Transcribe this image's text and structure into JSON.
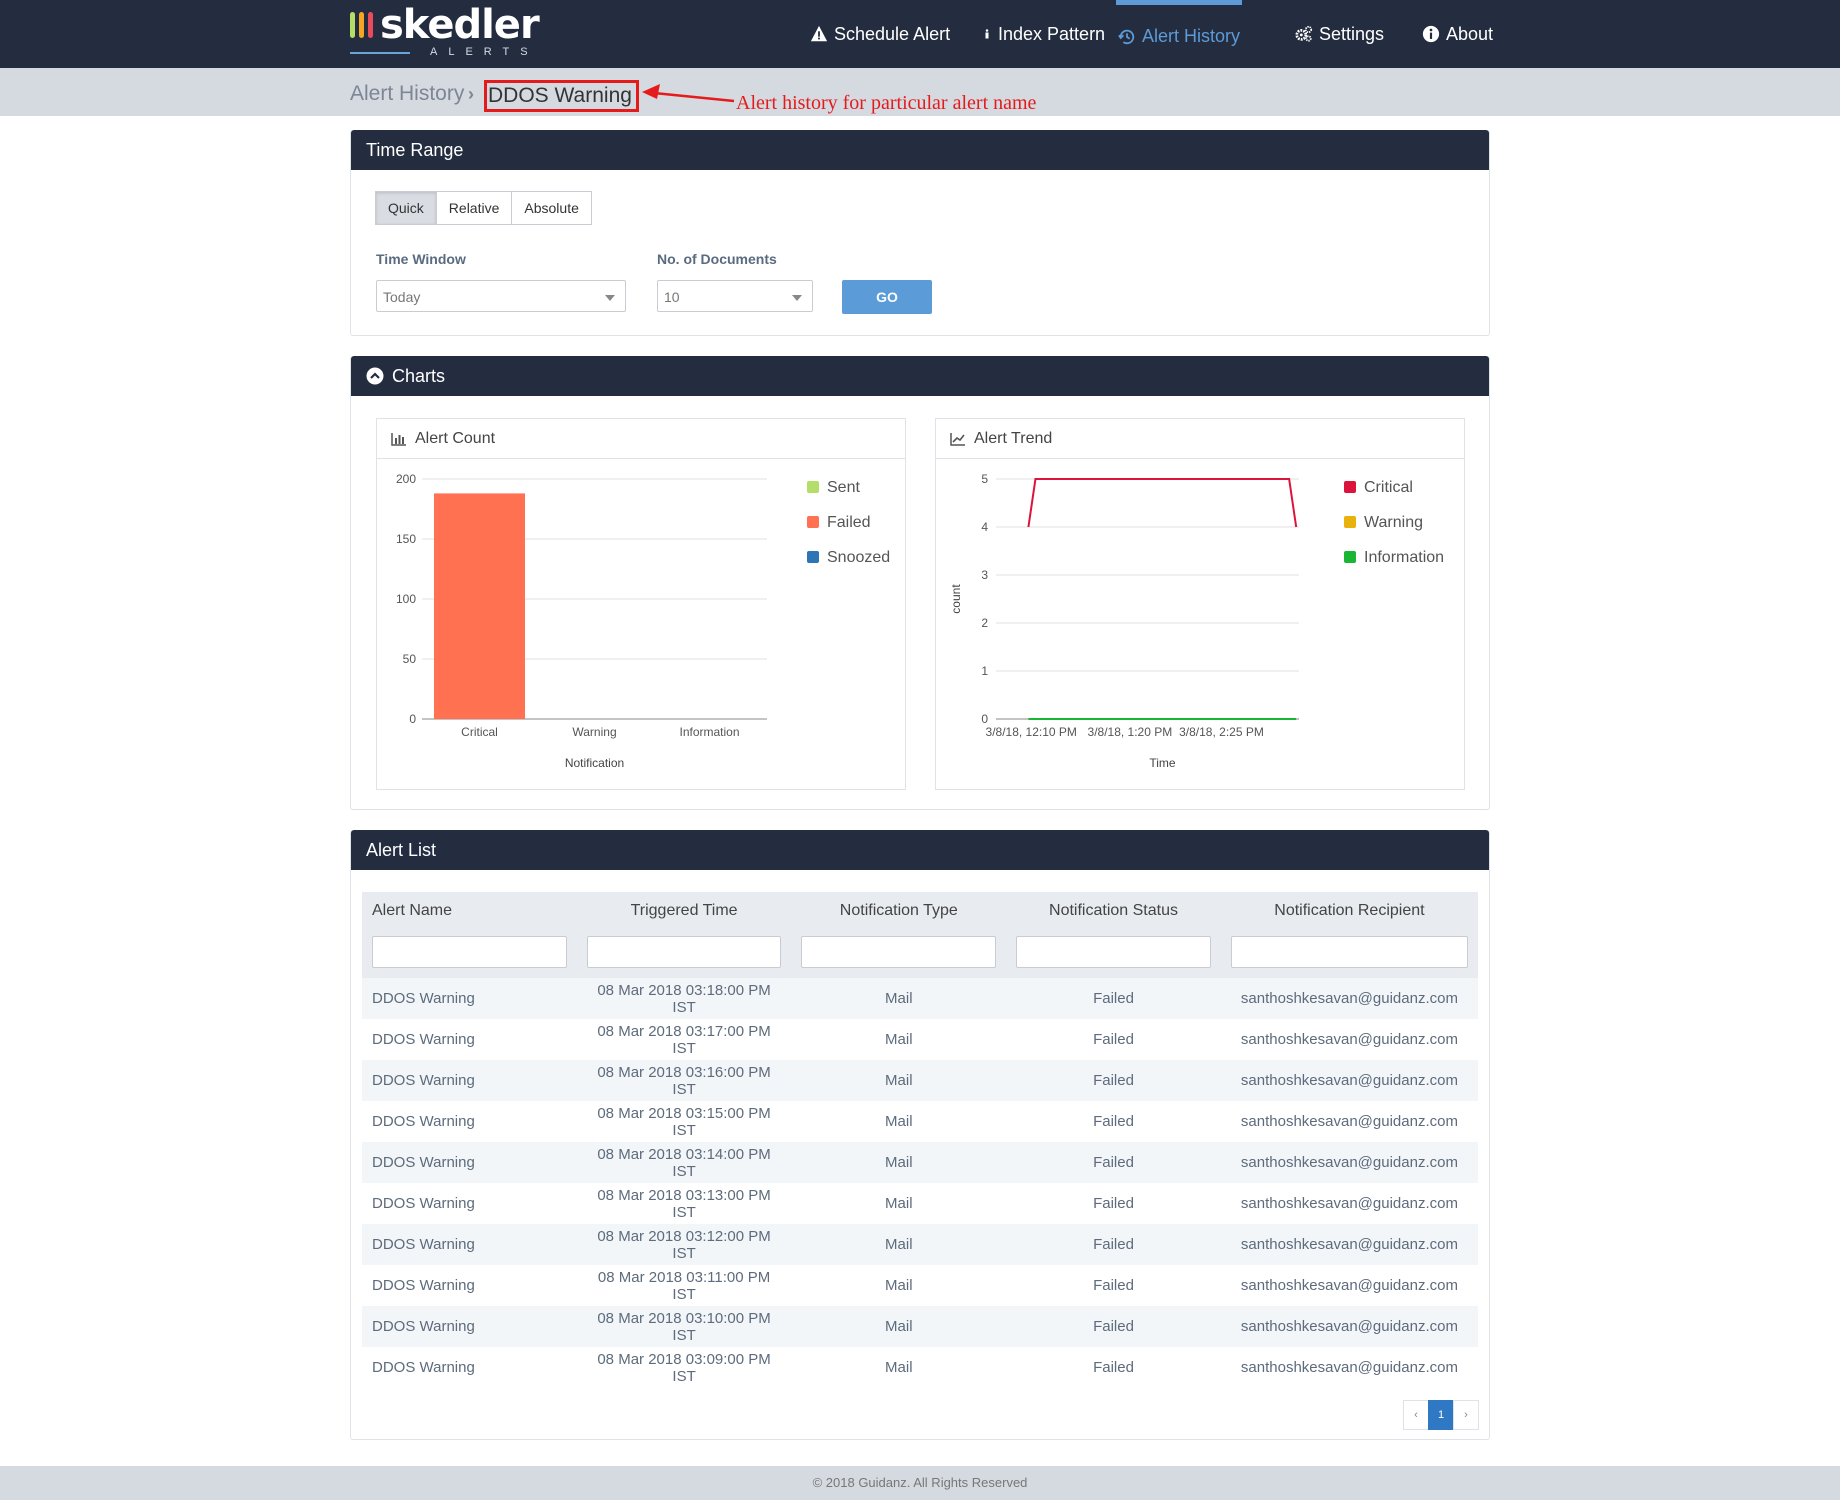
{
  "nav": {
    "items": [
      {
        "label": "Schedule Alert",
        "icon": "warning-icon"
      },
      {
        "label": "Index Pattern",
        "icon": "info-icon"
      },
      {
        "label": "Alert History",
        "icon": "history-icon",
        "active": true
      },
      {
        "label": "Settings",
        "icon": "gears-icon"
      },
      {
        "label": "About",
        "icon": "info-circle-icon"
      }
    ],
    "logo_text": "skedler",
    "logo_sub": "ALERTS"
  },
  "breadcrumb": {
    "root": "Alert History",
    "separator": "›",
    "current": "DDOS Warning"
  },
  "annotation": "Alert history for particular alert name",
  "time_range": {
    "title": "Time Range",
    "tabs": [
      "Quick",
      "Relative",
      "Absolute"
    ],
    "active_tab": "Quick",
    "time_window_label": "Time Window",
    "time_window_value": "Today",
    "docs_label": "No. of Documents",
    "docs_value": "10",
    "go_label": "GO"
  },
  "charts": {
    "title": "Charts",
    "alert_count": {
      "title": "Alert Count",
      "legend": [
        {
          "name": "Sent",
          "color": "#b3de69"
        },
        {
          "name": "Failed",
          "color": "#ff7150"
        },
        {
          "name": "Snoozed",
          "color": "#2e75b6"
        }
      ]
    },
    "alert_trend": {
      "title": "Alert Trend",
      "legend": [
        {
          "name": "Critical",
          "color": "#dc143c"
        },
        {
          "name": "Warning",
          "color": "#e8b10c"
        },
        {
          "name": "Information",
          "color": "#1bb534"
        }
      ]
    }
  },
  "chart_data": [
    {
      "type": "bar",
      "title": "Alert Count",
      "categories": [
        "Critical",
        "Warning",
        "Information"
      ],
      "series": [
        {
          "name": "Sent",
          "values": [
            0,
            0,
            0
          ]
        },
        {
          "name": "Failed",
          "values": [
            188,
            0,
            0
          ]
        },
        {
          "name": "Snoozed",
          "values": [
            0,
            0,
            0
          ]
        }
      ],
      "xlabel": "Notification",
      "ylabel": "",
      "ylim": [
        0,
        200
      ],
      "yticks": [
        0,
        50,
        100,
        150,
        200
      ]
    },
    {
      "type": "line",
      "title": "Alert Trend",
      "x_ticks": [
        "3/8/18, 12:10 PM",
        "3/8/18, 1:20 PM",
        "3/8/18, 2:25 PM"
      ],
      "x_range": [
        "3/8/18, 11:45 AM",
        "3/8/18, 3:20 PM"
      ],
      "series": [
        {
          "name": "Critical",
          "x": [
            "3/8/18, 12:08 PM",
            "3/8/18, 12:13 PM",
            "3/8/18, 3:13 PM",
            "3/8/18, 3:18 PM"
          ],
          "values": [
            4,
            5,
            5,
            4
          ]
        },
        {
          "name": "Information",
          "x": [
            "3/8/18, 12:08 PM",
            "3/8/18, 3:18 PM"
          ],
          "values": [
            0,
            0
          ]
        }
      ],
      "xlabel": "Time",
      "ylabel": "count",
      "ylim": [
        0,
        5
      ],
      "yticks": [
        0,
        1,
        2,
        3,
        4,
        5
      ]
    }
  ],
  "alert_list": {
    "title": "Alert List",
    "columns": [
      "Alert Name",
      "Triggered Time",
      "Notification Type",
      "Notification Status",
      "Notification Recipient"
    ],
    "rows": [
      [
        "DDOS Warning",
        "08 Mar 2018 03:18:00 PM IST",
        "Mail",
        "Failed",
        "santhoshkesavan@guidanz.com"
      ],
      [
        "DDOS Warning",
        "08 Mar 2018 03:17:00 PM IST",
        "Mail",
        "Failed",
        "santhoshkesavan@guidanz.com"
      ],
      [
        "DDOS Warning",
        "08 Mar 2018 03:16:00 PM IST",
        "Mail",
        "Failed",
        "santhoshkesavan@guidanz.com"
      ],
      [
        "DDOS Warning",
        "08 Mar 2018 03:15:00 PM IST",
        "Mail",
        "Failed",
        "santhoshkesavan@guidanz.com"
      ],
      [
        "DDOS Warning",
        "08 Mar 2018 03:14:00 PM IST",
        "Mail",
        "Failed",
        "santhoshkesavan@guidanz.com"
      ],
      [
        "DDOS Warning",
        "08 Mar 2018 03:13:00 PM IST",
        "Mail",
        "Failed",
        "santhoshkesavan@guidanz.com"
      ],
      [
        "DDOS Warning",
        "08 Mar 2018 03:12:00 PM IST",
        "Mail",
        "Failed",
        "santhoshkesavan@guidanz.com"
      ],
      [
        "DDOS Warning",
        "08 Mar 2018 03:11:00 PM IST",
        "Mail",
        "Failed",
        "santhoshkesavan@guidanz.com"
      ],
      [
        "DDOS Warning",
        "08 Mar 2018 03:10:00 PM IST",
        "Mail",
        "Failed",
        "santhoshkesavan@guidanz.com"
      ],
      [
        "DDOS Warning",
        "08 Mar 2018 03:09:00 PM IST",
        "Mail",
        "Failed",
        "santhoshkesavan@guidanz.com"
      ]
    ],
    "pagination": {
      "prev": "‹",
      "current": "1",
      "next": "›"
    }
  },
  "footer": "© 2018 Guidanz. All Rights Reserved"
}
